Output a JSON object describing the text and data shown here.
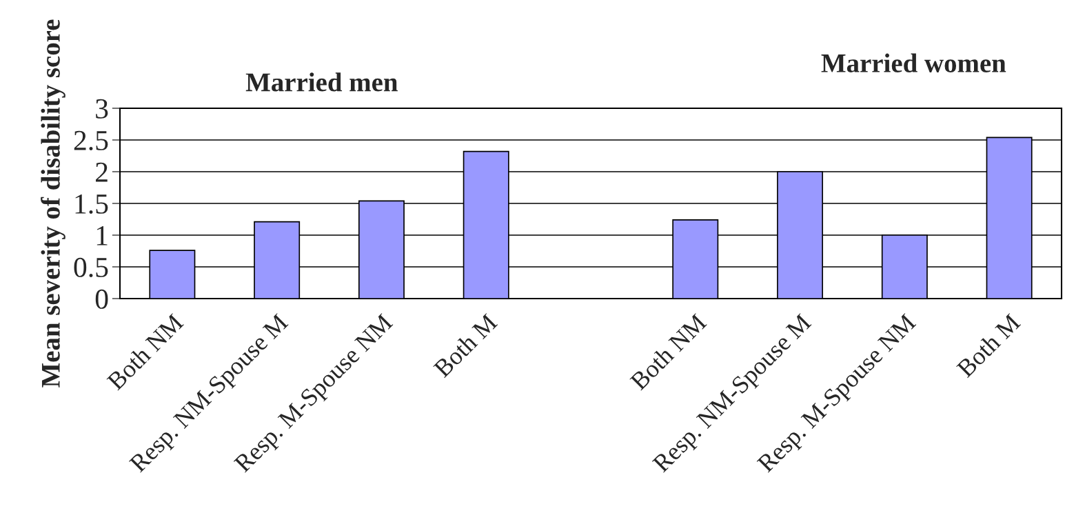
{
  "chart_data": {
    "type": "bar",
    "ylabel": "Mean severity of disability score",
    "categories": [
      "Both NM",
      "Resp. NM-Spouse M",
      "Resp. M-Spouse NM",
      "Both M",
      null,
      "Both NM",
      "Resp. NM-Spouse M",
      "Resp. M-Spouse NM",
      "Both M"
    ],
    "values": [
      0.76,
      1.21,
      1.54,
      2.32,
      null,
      1.24,
      2.0,
      1.0,
      2.54
    ],
    "color": "#9999ff",
    "annotations": [
      "Married men",
      "Married women"
    ],
    "ylim": [
      0,
      3
    ],
    "yticks": [
      0,
      0.5,
      1,
      1.5,
      2,
      2.5,
      3
    ],
    "grid": "y",
    "legend": false
  }
}
